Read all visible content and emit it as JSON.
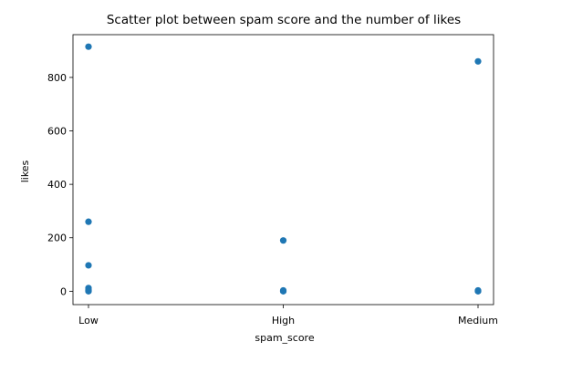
{
  "chart_data": {
    "type": "scatter",
    "title": "Scatter plot between spam score and the number of likes",
    "xlabel": "spam_score",
    "ylabel": "likes",
    "categories": [
      "Low",
      "High",
      "Medium"
    ],
    "yticks": [
      0,
      200,
      400,
      600,
      800
    ],
    "ylim": [
      -50,
      960
    ],
    "grid": false,
    "point_color": "#1f77b4",
    "points": [
      {
        "x": "Low",
        "y": 915
      },
      {
        "x": "Low",
        "y": 260
      },
      {
        "x": "Low",
        "y": 97
      },
      {
        "x": "Low",
        "y": 12
      },
      {
        "x": "Low",
        "y": 5
      },
      {
        "x": "Low",
        "y": 2
      },
      {
        "x": "Low",
        "y": 0
      },
      {
        "x": "High",
        "y": 190
      },
      {
        "x": "High",
        "y": 3
      },
      {
        "x": "High",
        "y": 1
      },
      {
        "x": "High",
        "y": 0
      },
      {
        "x": "Medium",
        "y": 860
      },
      {
        "x": "Medium",
        "y": 3
      },
      {
        "x": "Medium",
        "y": 1
      },
      {
        "x": "Medium",
        "y": 0
      }
    ]
  }
}
